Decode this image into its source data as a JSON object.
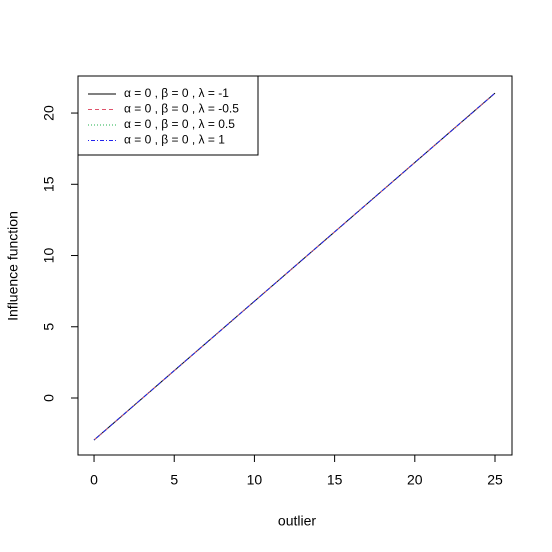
{
  "chart_data": {
    "type": "line",
    "x_label": "outlier",
    "y_label": "Influence function",
    "x": [
      0,
      25
    ],
    "series": [
      {
        "name": "α = 0 ,  β = 0 ,  λ = -1",
        "color": "#000000",
        "linestyle": "solid",
        "values": [
          -2.95,
          21.4
        ]
      },
      {
        "name": "α = 0 ,  β = 0 ,  λ = -0.5",
        "color": "#df536b",
        "linestyle": "dashed",
        "values": [
          -2.95,
          21.4
        ]
      },
      {
        "name": "α = 0 ,  β = 0 ,  λ = 0.5",
        "color": "#22b14c",
        "linestyle": "dotted",
        "values": [
          -2.95,
          21.4
        ]
      },
      {
        "name": "α = 0 ,  β = 0 ,  λ = 1",
        "color": "#2222ee",
        "linestyle": "dotdash",
        "values": [
          -2.95,
          21.4
        ]
      }
    ],
    "xlim": [
      -1,
      26.06
    ],
    "ylim": [
      -4,
      22.6
    ],
    "xticks": [
      0,
      5,
      10,
      15,
      20,
      25
    ],
    "yticks": [
      0,
      5,
      10,
      15,
      20
    ],
    "legend": "topleft",
    "grid": false
  }
}
